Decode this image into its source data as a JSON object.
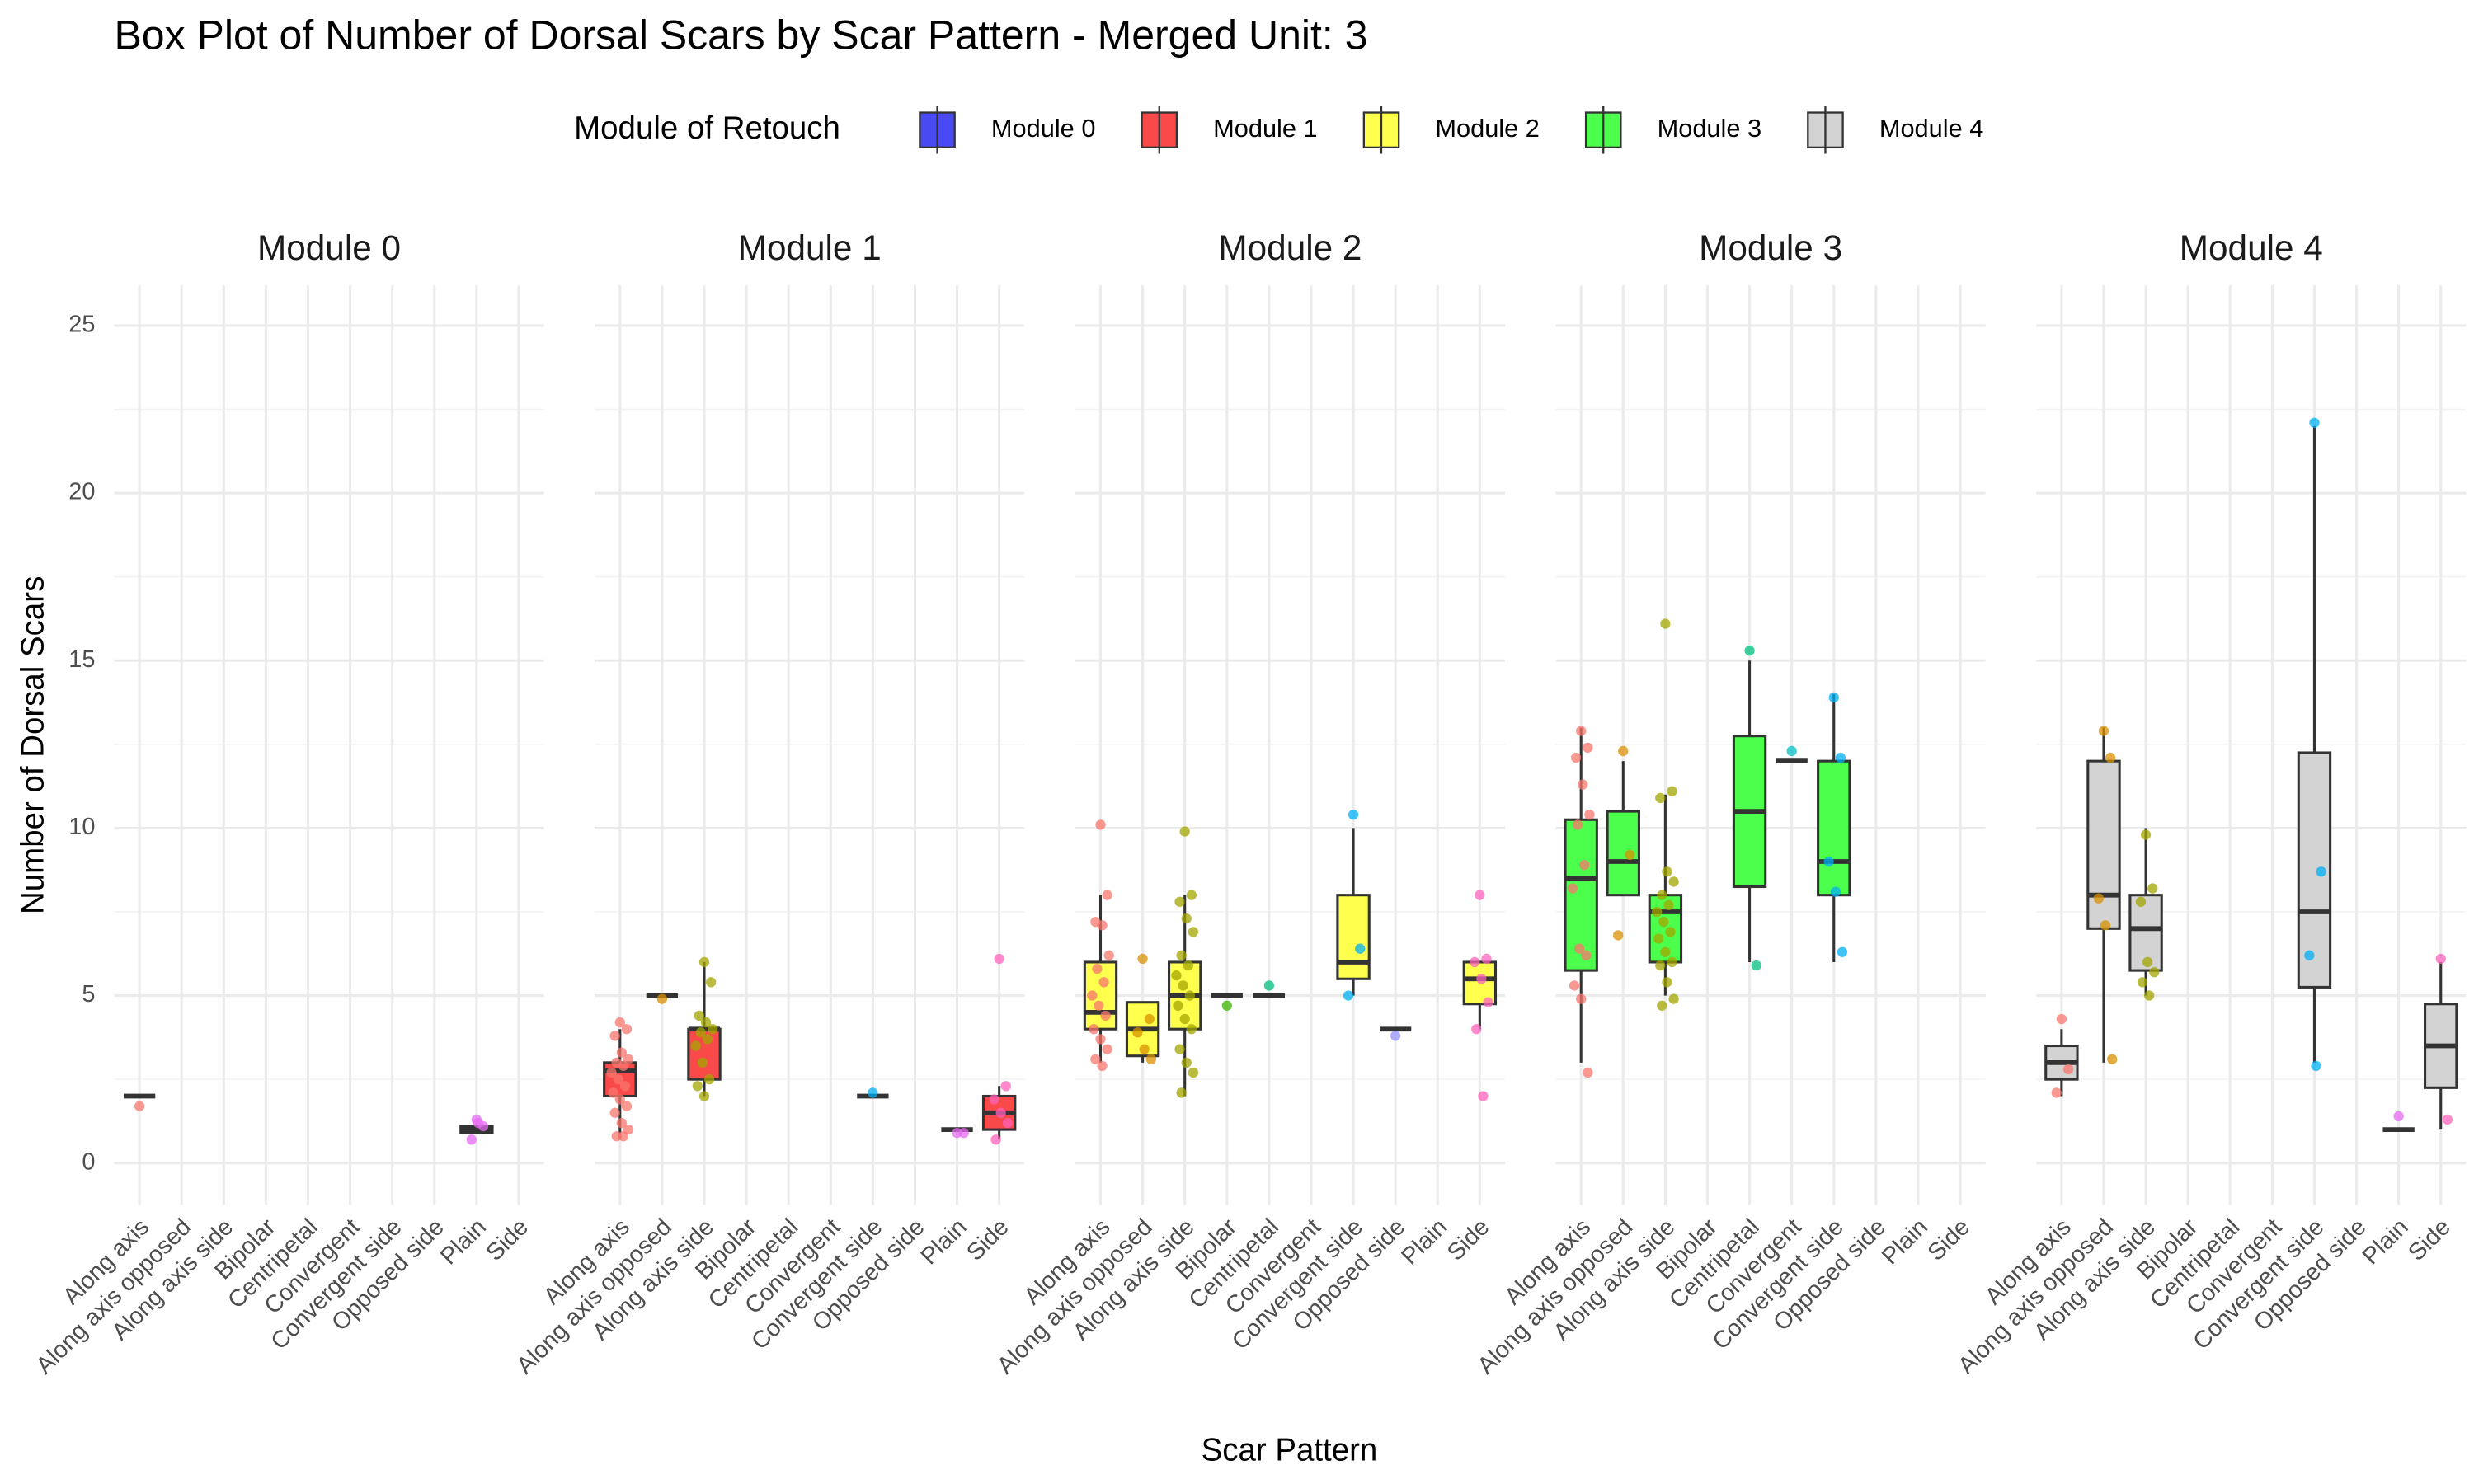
{
  "chart_data": {
    "type": "box",
    "title": "Box Plot of Number of Dorsal Scars by Scar Pattern - Merged Unit: 3",
    "x_label": "Scar Pattern",
    "y_label": "Number of Dorsal Scars",
    "legend_title": "Module of Retouch",
    "legend_position": "top",
    "grid": true,
    "categories": [
      "Along axis",
      "Along axis opposed",
      "Along axis side",
      "Bipolar",
      "Centripetal",
      "Convergent",
      "Convergent side",
      "Opposed side",
      "Plain",
      "Side"
    ],
    "point_colors": [
      "#F8766D",
      "#D89000",
      "#A3A500",
      "#39B600",
      "#00BF7D",
      "#00BFC4",
      "#00B0F6",
      "#9590FF",
      "#E76BF3",
      "#FF62BC"
    ],
    "ylim": [
      -1.25,
      26.2
    ],
    "yticks": [
      0,
      5,
      10,
      15,
      20,
      25
    ],
    "series": [
      {
        "name": "Module 0",
        "color": "#4a4af2",
        "boxes": [
          {
            "category": "Along axis",
            "min": 2,
            "q1": 2,
            "median": 2,
            "q3": 2,
            "max": 2,
            "points": [
              1.7
            ]
          },
          {
            "category": "Plain",
            "min": 0.9,
            "q1": 0.9,
            "median": 1,
            "q3": 1.1,
            "max": 1.1,
            "points": [
              1.3,
              1.1,
              0.7,
              1.2
            ]
          }
        ]
      },
      {
        "name": "Module 1",
        "color": "#f94949",
        "boxes": [
          {
            "category": "Along axis",
            "min": 0.7,
            "q1": 2,
            "median": 2.75,
            "q3": 3,
            "max": 4,
            "points": [
              4.2,
              4.0,
              3.8,
              3.3,
              3.1,
              3.0,
              2.9,
              2.7,
              2.5,
              2.3,
              2.1,
              1.9,
              1.7,
              1.5,
              1.2,
              1.0,
              0.8,
              0.8
            ]
          },
          {
            "category": "Along axis opposed",
            "min": 5,
            "q1": 5,
            "median": 5,
            "q3": 5,
            "max": 5,
            "points": [
              4.9
            ]
          },
          {
            "category": "Along axis side",
            "min": 2,
            "q1": 2.5,
            "median": 4,
            "q3": 4,
            "max": 6,
            "points": [
              6.0,
              5.4,
              4.4,
              4.2,
              4.0,
              3.9,
              3.7,
              3.5,
              3.0,
              2.5,
              2.3,
              2.0
            ]
          },
          {
            "category": "Convergent side",
            "min": 2,
            "q1": 2,
            "median": 2,
            "q3": 2,
            "max": 2,
            "points": [
              2.1
            ]
          },
          {
            "category": "Plain",
            "min": 1,
            "q1": 1,
            "median": 1,
            "q3": 1,
            "max": 1,
            "points": [
              0.9,
              0.9
            ]
          },
          {
            "category": "Side",
            "min": 0.7,
            "q1": 1,
            "median": 1.5,
            "q3": 2,
            "max": 2.3,
            "points": [
              6.1,
              2.3,
              1.9,
              1.5,
              1.2,
              0.7
            ]
          }
        ]
      },
      {
        "name": "Module 2",
        "color": "#ffff4d",
        "boxes": [
          {
            "category": "Along axis",
            "min": 3,
            "q1": 4,
            "median": 4.5,
            "q3": 6,
            "max": 8,
            "points": [
              10.1,
              8.0,
              7.2,
              7.1,
              6.2,
              5.8,
              5.4,
              5.0,
              4.7,
              4.4,
              4.0,
              3.7,
              3.4,
              3.1,
              2.9
            ]
          },
          {
            "category": "Along axis opposed",
            "min": 3,
            "q1": 3.2,
            "median": 4,
            "q3": 4.8,
            "max": 4.8,
            "points": [
              6.1,
              4.3,
              3.9,
              3.4,
              3.1
            ]
          },
          {
            "category": "Along axis side",
            "min": 2,
            "q1": 4,
            "median": 5,
            "q3": 6,
            "max": 8,
            "points": [
              9.9,
              8.0,
              7.8,
              7.3,
              6.9,
              6.2,
              5.9,
              5.6,
              5.3,
              5.0,
              4.7,
              4.3,
              4.0,
              3.4,
              3.0,
              2.7,
              2.1
            ]
          },
          {
            "category": "Bipolar",
            "min": 5,
            "q1": 5,
            "median": 5,
            "q3": 5,
            "max": 5,
            "points": [
              4.7
            ]
          },
          {
            "category": "Centripetal",
            "min": 5,
            "q1": 5,
            "median": 5,
            "q3": 5,
            "max": 5,
            "points": [
              5.3
            ]
          },
          {
            "category": "Convergent side",
            "min": 5,
            "q1": 5.5,
            "median": 6,
            "q3": 8,
            "max": 10,
            "points": [
              10.4,
              6.4,
              5.0
            ]
          },
          {
            "category": "Opposed side",
            "min": 4,
            "q1": 4,
            "median": 4,
            "q3": 4,
            "max": 4,
            "points": [
              3.8
            ]
          },
          {
            "category": "Side",
            "min": 4,
            "q1": 4.75,
            "median": 5.5,
            "q3": 6,
            "max": 6,
            "points": [
              8.0,
              6.1,
              6.0,
              5.5,
              4.8,
              4.0,
              2.0
            ]
          }
        ]
      },
      {
        "name": "Module 3",
        "color": "#4dff4d",
        "boxes": [
          {
            "category": "Along axis",
            "min": 3,
            "q1": 5.75,
            "median": 8.5,
            "q3": 10.25,
            "max": 13,
            "points": [
              12.9,
              12.4,
              12.1,
              11.3,
              10.4,
              10.1,
              8.9,
              8.2,
              6.4,
              6.2,
              5.3,
              4.9,
              2.7
            ]
          },
          {
            "category": "Along axis opposed",
            "min": 8,
            "q1": 8,
            "median": 9,
            "q3": 10.5,
            "max": 12,
            "points": [
              12.3,
              9.2,
              6.8
            ]
          },
          {
            "category": "Along axis side",
            "min": 5,
            "q1": 6,
            "median": 7.5,
            "q3": 8,
            "max": 11,
            "points": [
              16.1,
              11.1,
              10.9,
              8.7,
              8.4,
              8.0,
              7.7,
              7.5,
              7.2,
              6.9,
              6.7,
              6.3,
              6.0,
              5.9,
              5.4,
              4.9,
              4.7
            ]
          },
          {
            "category": "Centripetal",
            "min": 6,
            "q1": 8.25,
            "median": 10.5,
            "q3": 12.75,
            "max": 15,
            "points": [
              15.3,
              5.9
            ]
          },
          {
            "category": "Convergent",
            "min": 12,
            "q1": 12,
            "median": 12,
            "q3": 12,
            "max": 12,
            "points": [
              12.3
            ]
          },
          {
            "category": "Convergent side",
            "min": 6,
            "q1": 8,
            "median": 9,
            "q3": 12,
            "max": 14,
            "points": [
              13.9,
              12.1,
              9.0,
              8.1,
              6.3
            ]
          }
        ]
      },
      {
        "name": "Module 4",
        "color": "#d3d3d3",
        "boxes": [
          {
            "category": "Along axis",
            "min": 2,
            "q1": 2.5,
            "median": 3,
            "q3": 3.5,
            "max": 4,
            "points": [
              4.3,
              2.8,
              2.1
            ]
          },
          {
            "category": "Along axis opposed",
            "min": 3,
            "q1": 7,
            "median": 8,
            "q3": 12,
            "max": 13,
            "points": [
              12.9,
              12.1,
              7.9,
              7.1,
              3.1
            ]
          },
          {
            "category": "Along axis side",
            "min": 5,
            "q1": 5.75,
            "median": 7,
            "q3": 8,
            "max": 10,
            "points": [
              9.8,
              8.2,
              7.8,
              6.0,
              5.7,
              5.4,
              5.0
            ]
          },
          {
            "category": "Convergent side",
            "min": 3,
            "q1": 5.25,
            "median": 7.5,
            "q3": 12.25,
            "max": 22,
            "points": [
              22.1,
              8.7,
              6.2,
              2.9
            ]
          },
          {
            "category": "Plain",
            "min": 1,
            "q1": 1,
            "median": 1,
            "q3": 1,
            "max": 1,
            "points": [
              1.4
            ]
          },
          {
            "category": "Side",
            "min": 1,
            "q1": 2.25,
            "median": 3.5,
            "q3": 4.75,
            "max": 6,
            "points": [
              6.1,
              1.3
            ]
          }
        ]
      }
    ]
  }
}
